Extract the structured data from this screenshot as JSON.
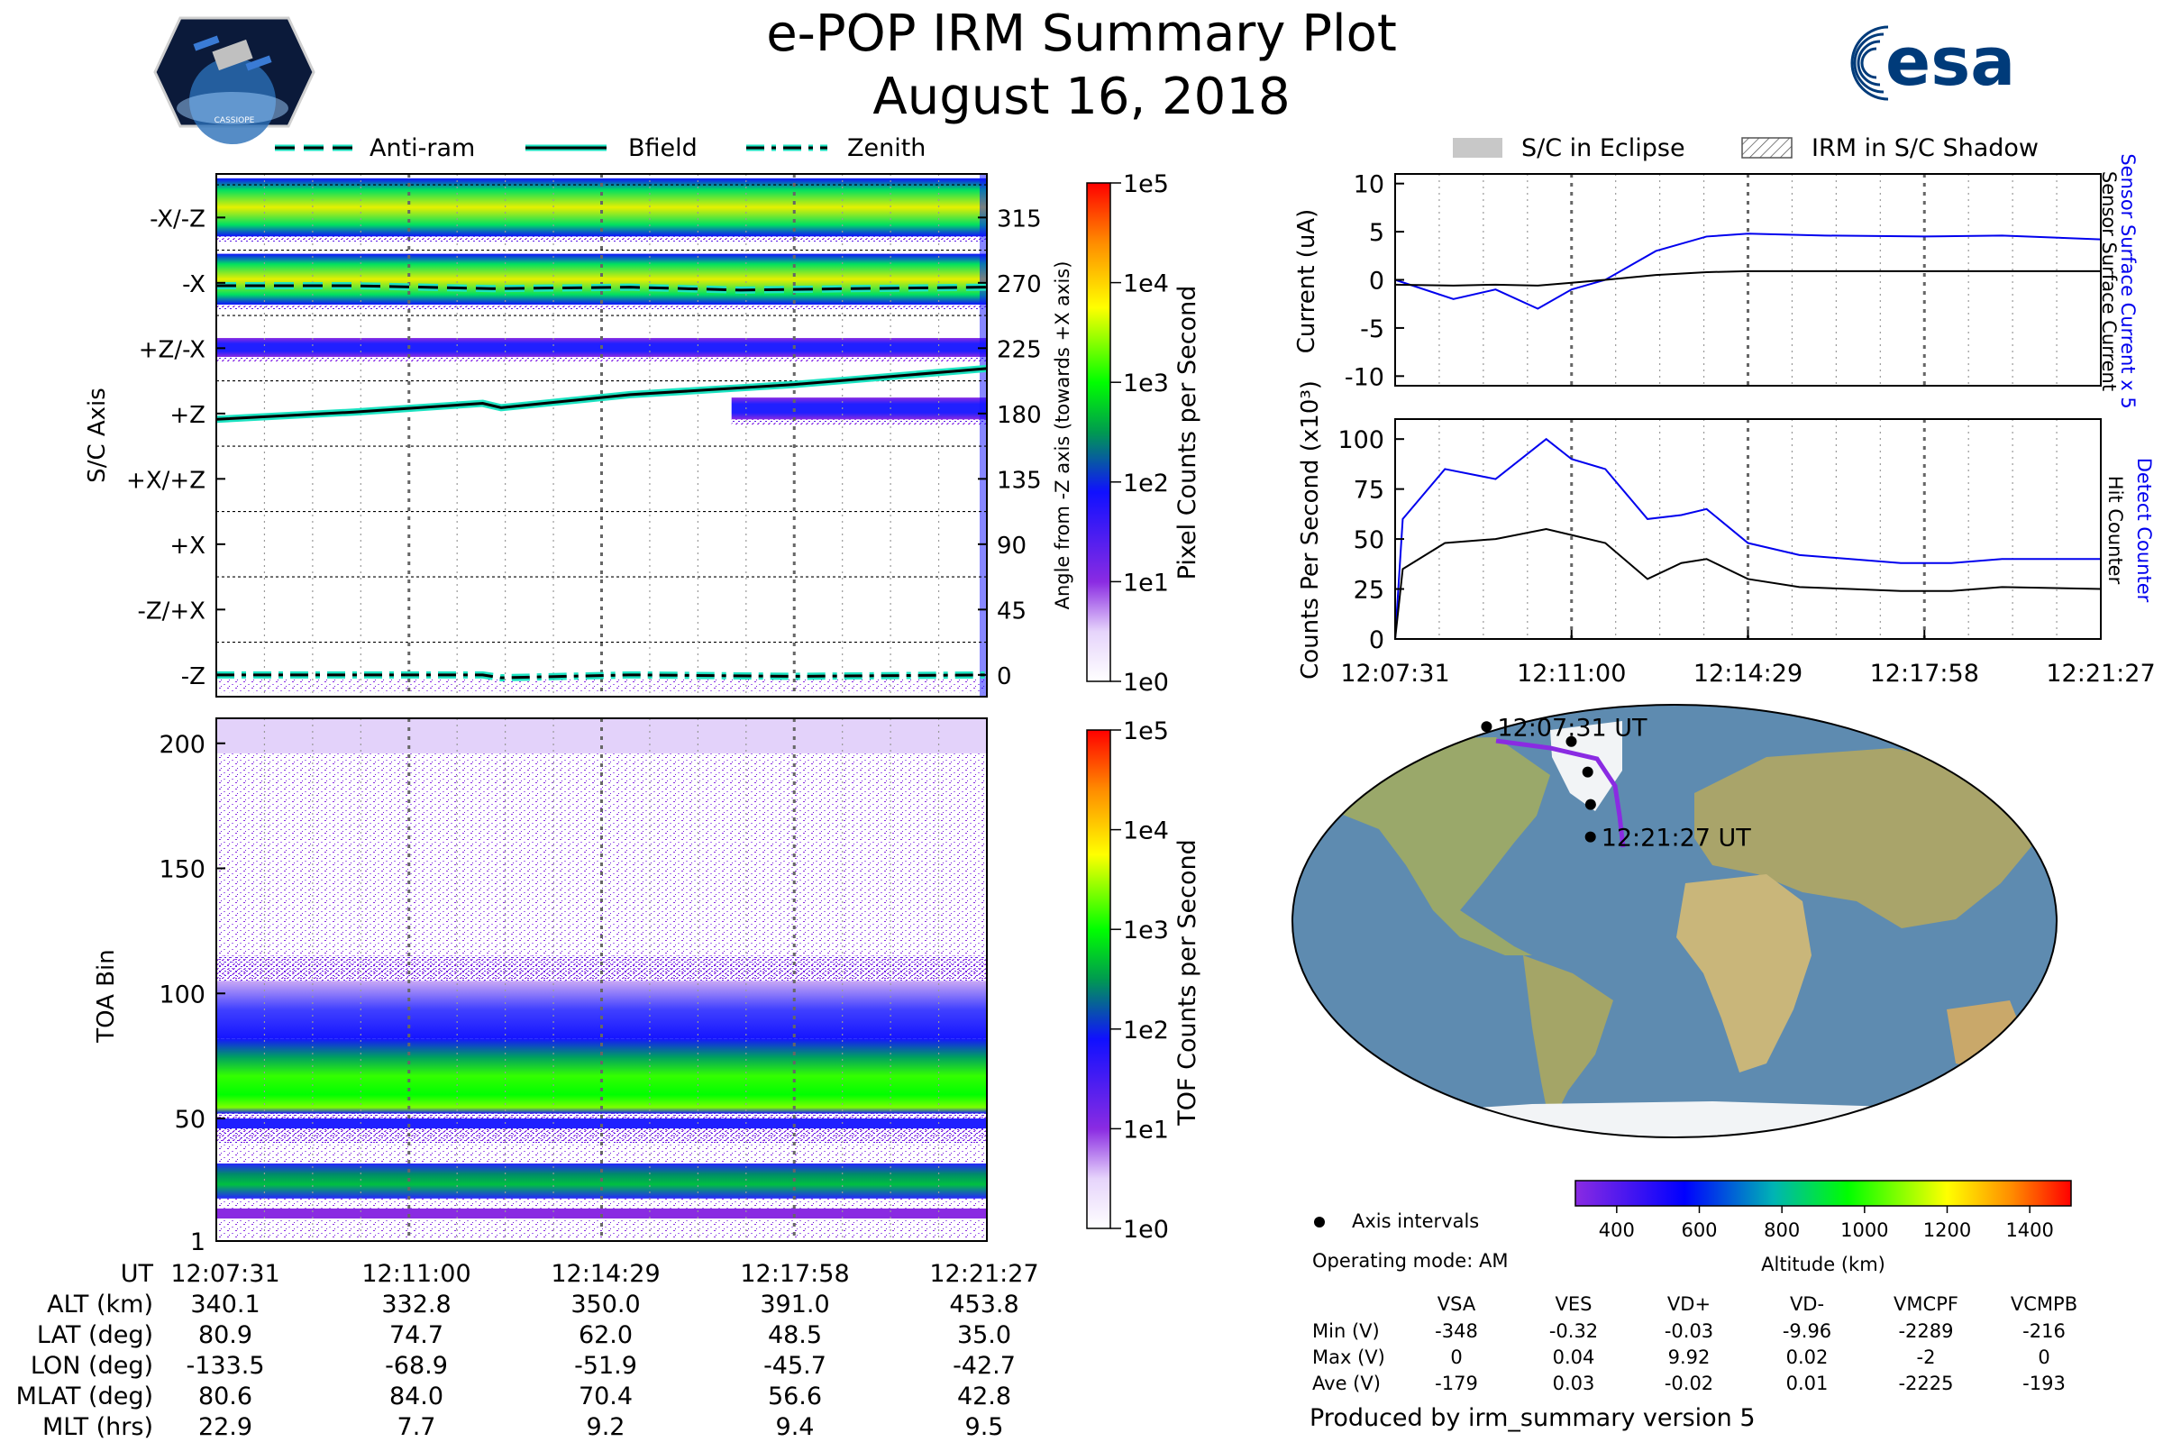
{
  "header": {
    "title": "e-POP IRM Summary Plot",
    "date": "August 16, 2018",
    "left_logo": "cassiope-mission-logo",
    "left_logo_text": "CASSIOPE",
    "right_logo": "esa-logo",
    "right_logo_text": "esa"
  },
  "colors": {
    "background": "#ffffff",
    "sensor_current": "#0000ee",
    "counter_black": "#000000",
    "trace_cyan": "#1de3c2",
    "eclipse_gray": "#c8c8c8",
    "ocean": "#5e8bb0",
    "land": "#9aa86a",
    "ice": "#f2f4f6",
    "orbit": "#8a2be2"
  },
  "legend_top_left": {
    "items": [
      {
        "label": "Anti-ram",
        "style": "dashed"
      },
      {
        "label": "Bfield",
        "style": "solid"
      },
      {
        "label": "Zenith",
        "style": "dashdot"
      }
    ]
  },
  "legend_top_right": {
    "items": [
      {
        "label": "S/C in Eclipse",
        "style": "solid-gray"
      },
      {
        "label": "IRM in S/C Shadow",
        "style": "hatched"
      }
    ]
  },
  "chart_data": [
    {
      "type": "heatmap",
      "id": "pixel-counts-panel",
      "ylabel": "S/C Axis",
      "y_categories": [
        "-X/-Z",
        "-X",
        "+Z/-X",
        "+Z",
        "+X/+Z",
        "+X",
        "-Z/+X",
        "-Z"
      ],
      "y2label": "Angle from -Z axis (towards +X axis)",
      "y2_ticks": [
        "315",
        "270",
        "225",
        "180",
        "135",
        "90",
        "45",
        "0"
      ],
      "y2lim": [
        -15,
        345
      ],
      "colorbar": {
        "label": "Pixel Counts per Second",
        "ticks": [
          "1e5",
          "1e4",
          "1e3",
          "1e2",
          "1e1",
          "1e0"
        ]
      },
      "bands": [
        {
          "name": "-X/-Z",
          "angle_from": 302,
          "angle_to": 342,
          "level": "high"
        },
        {
          "name": "-X",
          "angle_from": 255,
          "angle_to": 290,
          "level": "high"
        },
        {
          "name": "+Z/-X",
          "angle_from": 219,
          "angle_to": 232,
          "level": "medium"
        },
        {
          "name": "+Z (partial)",
          "angle_from": 176,
          "angle_to": 191,
          "level": "low",
          "time_from": "12:16:50",
          "time_to": "12:21:27"
        }
      ],
      "series": [
        {
          "name": "Anti-ram",
          "x": [
            "12:07:31",
            "12:10:00",
            "12:12:30",
            "12:15:00",
            "12:17:00",
            "12:19:00",
            "12:21:27"
          ],
          "values": [
            268,
            268,
            266,
            267,
            265,
            266,
            267
          ]
        },
        {
          "name": "Bfield",
          "x": [
            "12:07:31",
            "12:10:00",
            "12:12:20",
            "12:12:40",
            "12:15:00",
            "12:17:58",
            "12:21:27"
          ],
          "values": [
            176,
            181,
            187,
            184,
            193,
            200,
            211
          ]
        },
        {
          "name": "Zenith",
          "x": [
            "12:07:31",
            "12:10:00",
            "12:12:20",
            "12:12:40",
            "12:15:00",
            "12:17:58",
            "12:21:27"
          ],
          "values": [
            0,
            0,
            0,
            -2,
            0,
            -1,
            0
          ]
        }
      ]
    },
    {
      "type": "heatmap",
      "id": "tof-counts-panel",
      "ylabel": "TOA Bin",
      "y_ticks": [
        "1",
        "50",
        "100",
        "150",
        "200"
      ],
      "ylim": [
        1,
        210
      ],
      "colorbar": {
        "label": "TOF Counts per Second",
        "ticks": [
          "1e5",
          "1e4",
          "1e3",
          "1e2",
          "1e1",
          "1e0"
        ]
      },
      "bands": [
        {
          "name": "main",
          "bin_from": 52,
          "bin_to": 82,
          "level": "high"
        },
        {
          "name": "upper halo",
          "bin_from": 82,
          "bin_to": 105,
          "level": "medium"
        },
        {
          "name": "low",
          "bin_from": 18,
          "bin_to": 32,
          "level": "high"
        }
      ]
    },
    {
      "type": "line",
      "id": "current-panel",
      "ylabel": "Current (uA)",
      "ylim": [
        -11,
        11
      ],
      "y_ticks": [
        "10",
        "5",
        "0",
        "-5",
        "-10"
      ],
      "right_labels": [
        {
          "text": "Sensor Surface Current x 5",
          "color": "#0000ee"
        },
        {
          "text": "Sensor Surface Current",
          "color": "#000000"
        }
      ],
      "x": [
        "12:07:31",
        "12:08:40",
        "12:09:30",
        "12:10:20",
        "12:11:00",
        "12:11:40",
        "12:12:40",
        "12:13:40",
        "12:14:29",
        "12:16:00",
        "12:17:58",
        "12:19:30",
        "12:21:27"
      ],
      "series": [
        {
          "name": "Sensor Surface Current x 5",
          "values": [
            0,
            -2,
            -1,
            -3,
            -1,
            0,
            3,
            4.5,
            4.8,
            4.6,
            4.5,
            4.6,
            4.2
          ]
        },
        {
          "name": "Sensor Surface Current",
          "values": [
            -0.5,
            -0.6,
            -0.5,
            -0.6,
            -0.3,
            0,
            0.5,
            0.8,
            0.9,
            0.9,
            0.9,
            0.9,
            0.9
          ]
        }
      ]
    },
    {
      "type": "line",
      "id": "counter-panel",
      "ylabel": "Counts Per Second (x10³)",
      "ylim": [
        0,
        110
      ],
      "y_ticks": [
        "100",
        "75",
        "50",
        "25",
        "0"
      ],
      "x_ticks": [
        "12:07:31",
        "12:11:00",
        "12:14:29",
        "12:17:58",
        "12:21:27"
      ],
      "right_labels": [
        {
          "text": "Detect Counter",
          "color": "#0000ee"
        },
        {
          "text": "Hit Counter",
          "color": "#000000"
        }
      ],
      "x": [
        "12:07:31",
        "12:07:40",
        "12:08:30",
        "12:09:30",
        "12:10:30",
        "12:11:00",
        "12:11:40",
        "12:12:30",
        "12:13:10",
        "12:13:40",
        "12:14:29",
        "12:15:30",
        "12:16:30",
        "12:17:30",
        "12:18:30",
        "12:19:30",
        "12:21:27"
      ],
      "series": [
        {
          "name": "Detect Counter",
          "values": [
            0,
            60,
            85,
            80,
            100,
            90,
            85,
            60,
            62,
            65,
            48,
            42,
            40,
            38,
            38,
            40,
            40
          ]
        },
        {
          "name": "Hit Counter",
          "values": [
            0,
            35,
            48,
            50,
            55,
            52,
            48,
            30,
            38,
            40,
            30,
            26,
            25,
            24,
            24,
            26,
            25
          ]
        }
      ]
    },
    {
      "type": "scatter",
      "id": "orbit-map",
      "markers": [
        {
          "label": "12:07:31 UT",
          "lat": 80.9,
          "lon": -133.5
        },
        {
          "label": "",
          "lat": 74.7,
          "lon": -68.9
        },
        {
          "label": "",
          "lat": 62.0,
          "lon": -51.9
        },
        {
          "label": "",
          "lat": 48.5,
          "lon": -45.7
        },
        {
          "label": "12:21:27 UT",
          "lat": 35.0,
          "lon": -42.7
        }
      ],
      "colorbar": {
        "label": "Altitude (km)",
        "ticks": [
          "400",
          "600",
          "800",
          "1000",
          "1200",
          "1400"
        ],
        "range": [
          300,
          1500
        ]
      },
      "legend": "Axis intervals"
    }
  ],
  "time_axis": {
    "row_label": "UT",
    "ticks": [
      "12:07:31",
      "12:11:00",
      "12:14:29",
      "12:17:58",
      "12:21:27"
    ]
  },
  "ephemeris_table": {
    "rows": [
      {
        "label": "ALT (km)",
        "values": [
          "340.1",
          "332.8",
          "350.0",
          "391.0",
          "453.8"
        ]
      },
      {
        "label": "LAT (deg)",
        "values": [
          "80.9",
          "74.7",
          "62.0",
          "48.5",
          "35.0"
        ]
      },
      {
        "label": "LON (deg)",
        "values": [
          "-133.5",
          "-68.9",
          "-51.9",
          "-45.7",
          "-42.7"
        ]
      },
      {
        "label": "MLAT (deg)",
        "values": [
          "80.6",
          "84.0",
          "70.4",
          "56.6",
          "42.8"
        ]
      },
      {
        "label": "MLT (hrs)",
        "values": [
          "22.9",
          "7.7",
          "9.2",
          "9.4",
          "9.5"
        ]
      }
    ]
  },
  "operating_mode": "Operating mode: AM",
  "voltage_table": {
    "columns": [
      "VSA",
      "VES",
      "VD+",
      "VD-",
      "VMCPF",
      "VCMPB"
    ],
    "rows": [
      {
        "label": "Min (V)",
        "values": [
          "-348",
          "-0.32",
          "-0.03",
          "-9.96",
          "-2289",
          "-216"
        ]
      },
      {
        "label": "Max (V)",
        "values": [
          "0",
          "0.04",
          "9.92",
          "0.02",
          "-2",
          "0"
        ]
      },
      {
        "label": "Ave (V)",
        "values": [
          "-179",
          "0.03",
          "-0.02",
          "0.01",
          "-2225",
          "-193"
        ]
      }
    ]
  },
  "footer": "Produced by irm_summary version 5"
}
